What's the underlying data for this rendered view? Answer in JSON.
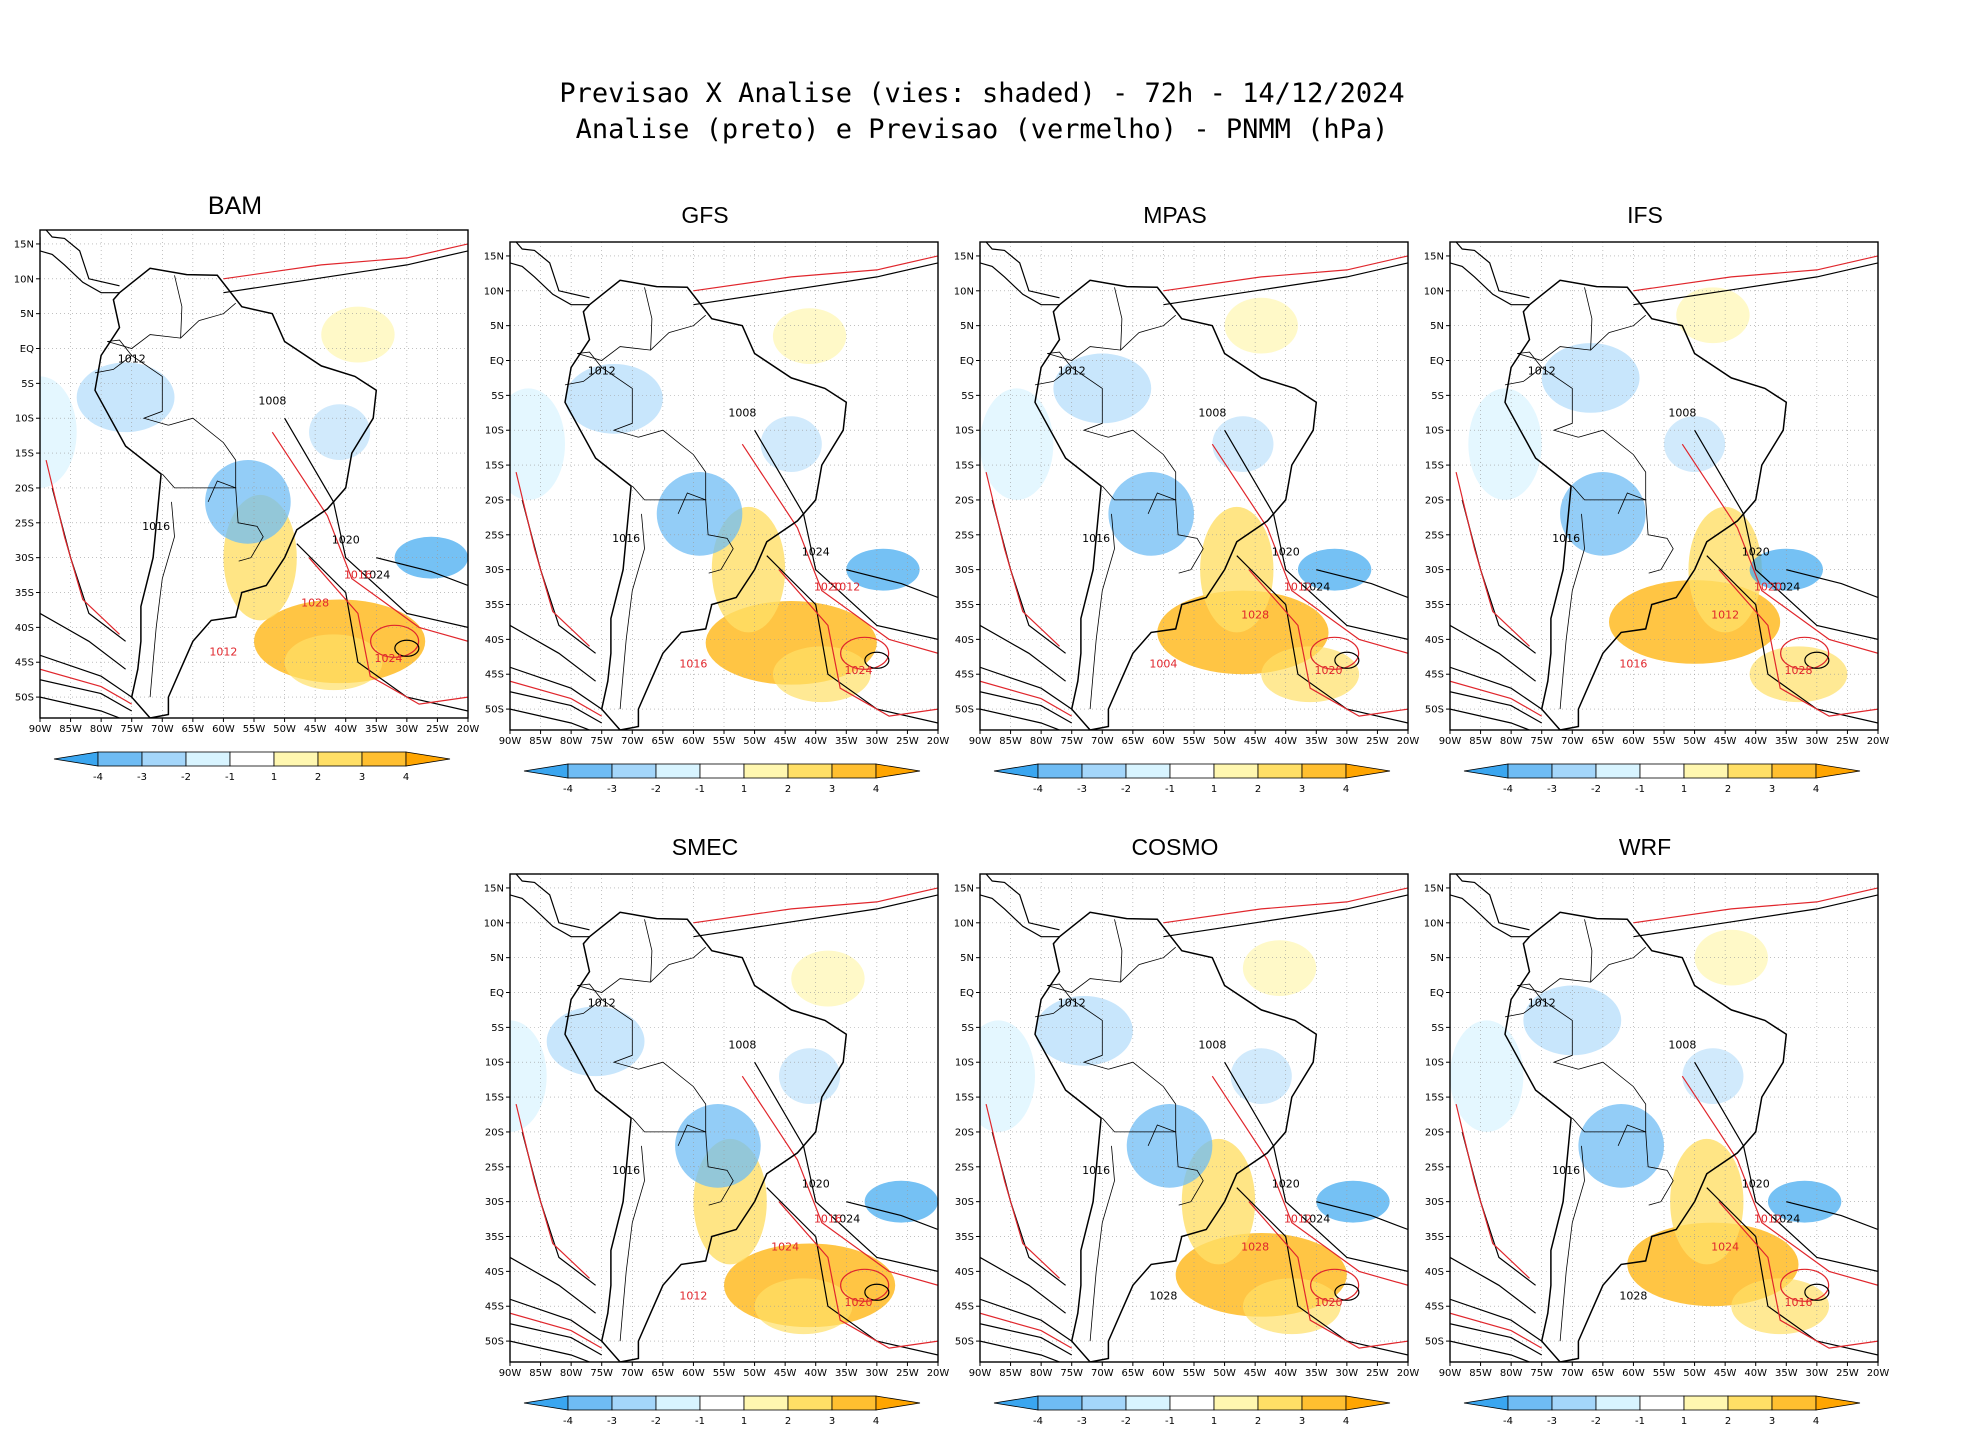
{
  "title": {
    "line1": "Previsao X Analise (vies: shaded) - 72h - 14/12/2024",
    "line2": "Analise (preto) e Previsao (vermelho) - PNMM (hPa)"
  },
  "axis": {
    "lat_labels": [
      "15N",
      "10N",
      "5N",
      "EQ",
      "5S",
      "10S",
      "15S",
      "20S",
      "25S",
      "30S",
      "35S",
      "40S",
      "45S",
      "50S"
    ],
    "lon_labels": [
      "90W",
      "85W",
      "80W",
      "75W",
      "70W",
      "65W",
      "60W",
      "55W",
      "50W",
      "45W",
      "40W",
      "35W",
      "30W",
      "25W",
      "20W"
    ]
  },
  "colorbar": {
    "labels": [
      "-4",
      "-3",
      "-2",
      "-1",
      "1",
      "2",
      "3",
      "4"
    ],
    "colors": [
      "#3aa6f0",
      "#6fbcf4",
      "#a4d6fa",
      "#d8f4ff",
      "#ffffff",
      "#fff7b0",
      "#ffdf66",
      "#ffbf30",
      "#ffa500"
    ]
  },
  "colors": {
    "analysis_line": "#000000",
    "forecast_line": "#e0262c",
    "border": "#000000",
    "grid": "#9a9a9a"
  },
  "panels": [
    {
      "id": "bam",
      "name": "BAM",
      "labels": [
        {
          "t": "1012",
          "c": "a"
        },
        {
          "t": "1008",
          "c": "a"
        },
        {
          "t": "1016",
          "c": "a"
        },
        {
          "t": "1020",
          "c": "a"
        },
        {
          "t": "1024",
          "c": "a"
        },
        {
          "t": "1012",
          "c": "f"
        },
        {
          "t": "1016",
          "c": "f"
        },
        {
          "t": "1024",
          "c": "f"
        },
        {
          "t": "1028",
          "c": "f"
        }
      ]
    },
    {
      "id": "gfs",
      "name": "GFS",
      "labels": [
        {
          "t": "1012",
          "c": "a"
        },
        {
          "t": "1008",
          "c": "a"
        },
        {
          "t": "1016",
          "c": "a"
        },
        {
          "t": "1024",
          "c": "a"
        },
        {
          "t": "1012",
          "c": "f"
        },
        {
          "t": "1016",
          "c": "f"
        },
        {
          "t": "1020",
          "c": "f"
        },
        {
          "t": "1024",
          "c": "f"
        }
      ]
    },
    {
      "id": "mpas",
      "name": "MPAS",
      "labels": [
        {
          "t": "1012",
          "c": "a"
        },
        {
          "t": "1008",
          "c": "a"
        },
        {
          "t": "1016",
          "c": "a"
        },
        {
          "t": "1020",
          "c": "a"
        },
        {
          "t": "1024",
          "c": "a"
        },
        {
          "t": "1004",
          "c": "f"
        },
        {
          "t": "1012",
          "c": "f"
        },
        {
          "t": "1020",
          "c": "f"
        },
        {
          "t": "1028",
          "c": "f"
        }
      ]
    },
    {
      "id": "ifs",
      "name": "IFS",
      "labels": [
        {
          "t": "1012",
          "c": "a"
        },
        {
          "t": "1008",
          "c": "a"
        },
        {
          "t": "1016",
          "c": "a"
        },
        {
          "t": "1020",
          "c": "a"
        },
        {
          "t": "1024",
          "c": "a"
        },
        {
          "t": "1016",
          "c": "f"
        },
        {
          "t": "1020",
          "c": "f"
        },
        {
          "t": "1028",
          "c": "f"
        },
        {
          "t": "1012",
          "c": "f"
        }
      ]
    },
    {
      "id": "smec",
      "name": "SMEC",
      "labels": [
        {
          "t": "1012",
          "c": "a"
        },
        {
          "t": "1008",
          "c": "a"
        },
        {
          "t": "1016",
          "c": "a"
        },
        {
          "t": "1020",
          "c": "a"
        },
        {
          "t": "1024",
          "c": "a"
        },
        {
          "t": "1012",
          "c": "f"
        },
        {
          "t": "1016",
          "c": "f"
        },
        {
          "t": "1020",
          "c": "f"
        },
        {
          "t": "1024",
          "c": "f"
        }
      ]
    },
    {
      "id": "cosmo",
      "name": "COSMO",
      "labels": [
        {
          "t": "1012",
          "c": "a"
        },
        {
          "t": "1008",
          "c": "a"
        },
        {
          "t": "1016",
          "c": "a"
        },
        {
          "t": "1020",
          "c": "a"
        },
        {
          "t": "1024",
          "c": "a"
        },
        {
          "t": "1028",
          "c": "a"
        },
        {
          "t": "1012",
          "c": "f"
        },
        {
          "t": "1020",
          "c": "f"
        },
        {
          "t": "1028",
          "c": "f"
        }
      ]
    },
    {
      "id": "wrf",
      "name": "WRF",
      "labels": [
        {
          "t": "1012",
          "c": "a"
        },
        {
          "t": "1008",
          "c": "a"
        },
        {
          "t": "1016",
          "c": "a"
        },
        {
          "t": "1020",
          "c": "a"
        },
        {
          "t": "1024",
          "c": "a"
        },
        {
          "t": "1028",
          "c": "a"
        },
        {
          "t": "1012",
          "c": "f"
        },
        {
          "t": "1016",
          "c": "f"
        },
        {
          "t": "1024",
          "c": "f"
        }
      ]
    }
  ]
}
